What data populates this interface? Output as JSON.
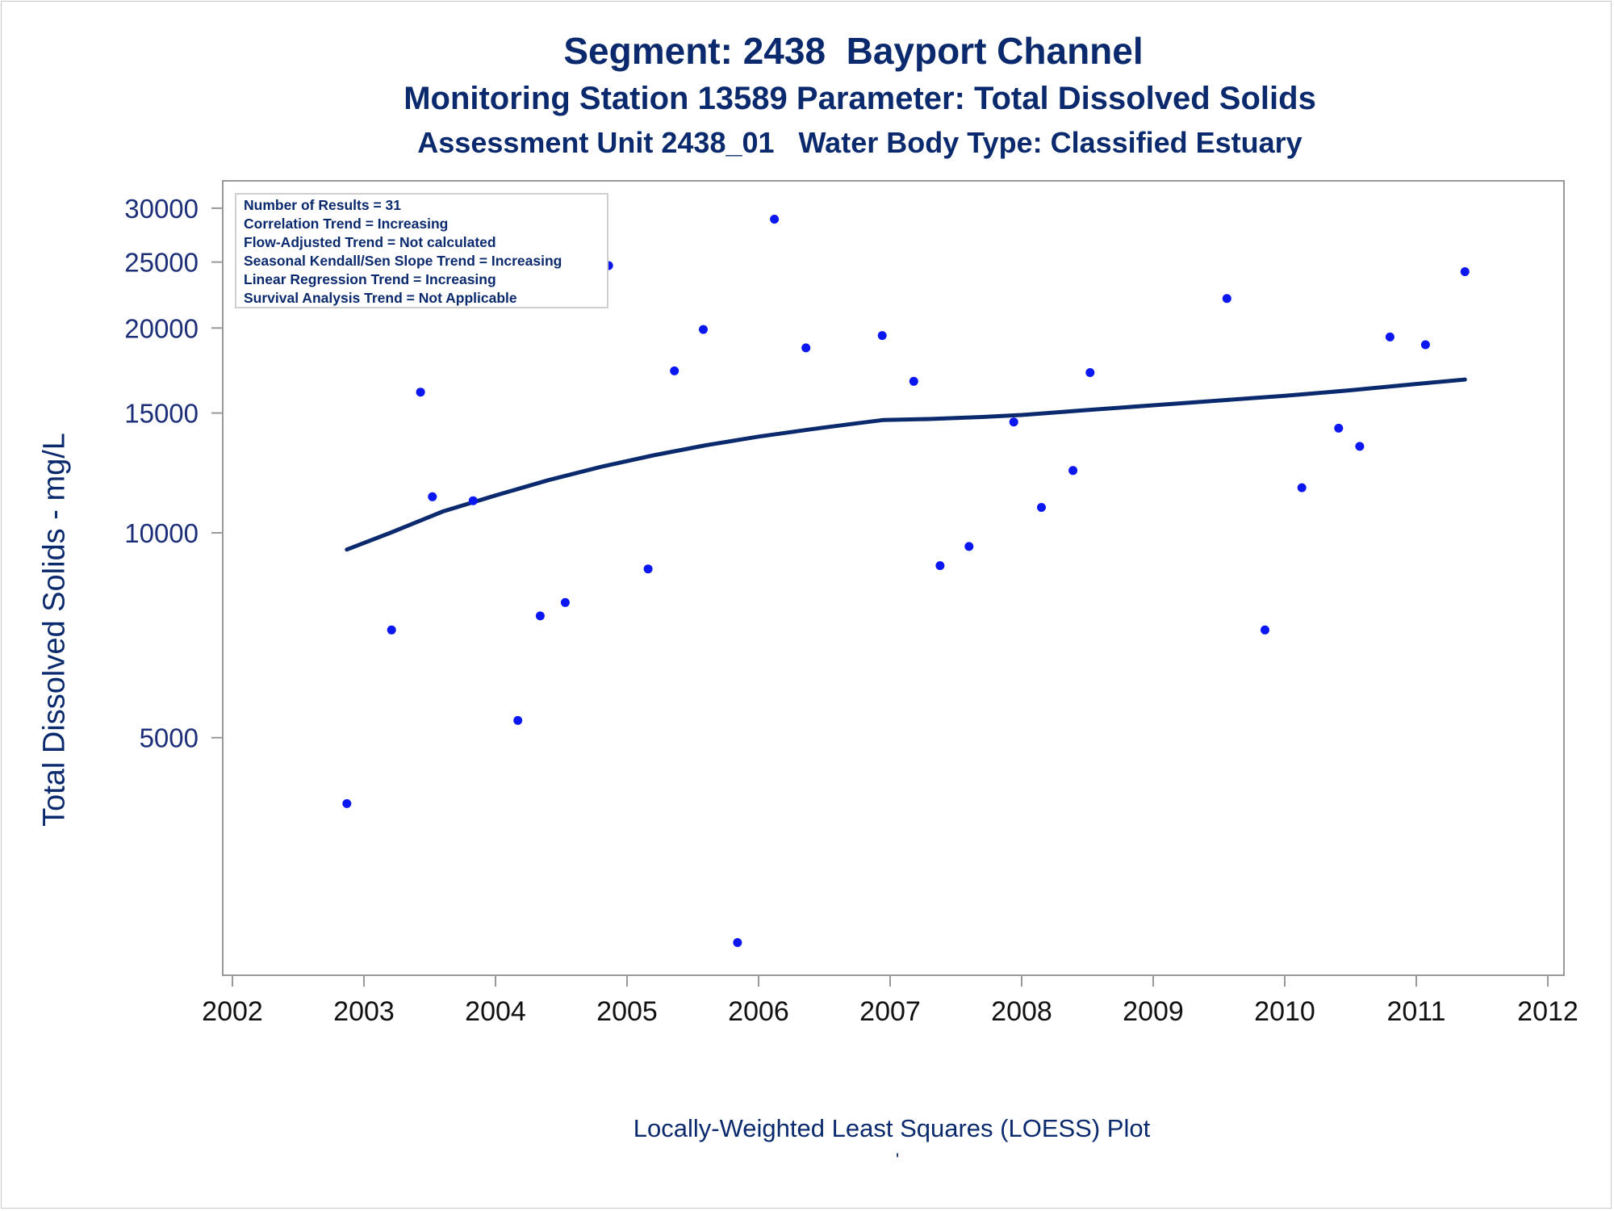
{
  "header": {
    "title": "Segment: 2438  Bayport Channel",
    "subtitle": "Monitoring Station 13589 Parameter: Total Dissolved Solids",
    "subtitle2": "Assessment Unit 2438_01   Water Body Type: Classified Estuary"
  },
  "footnote": "Locally-Weighted Least Squares (LOESS) Plot",
  "footnote_mark": "'",
  "colors": {
    "text": "#0b2a6e",
    "points": "#0a17f0",
    "loess": "#0b2a6e",
    "axis": "#999999"
  },
  "chart_data": {
    "type": "scatter",
    "ylabel": "Total Dissolved Solids - mg/L",
    "xlabel": "",
    "y_scale": "log",
    "xlim": [
      2002.0,
      2012.0
    ],
    "ylim": [
      2300,
      31500
    ],
    "x_ticks": [
      2002,
      2003,
      2004,
      2005,
      2006,
      2007,
      2008,
      2009,
      2010,
      2011,
      2012
    ],
    "y_ticks": [
      5000,
      10000,
      15000,
      20000,
      25000,
      30000
    ],
    "legend_position": "top-left",
    "stats": [
      "Number of Results = 31",
      "Correlation Trend = Increasing",
      "Flow-Adjusted Trend = Not calculated",
      "Seasonal Kendall/Sen Slope Trend = Increasing",
      "Linear Regression Trend = Increasing",
      "Survival Analysis Trend = Not Applicable"
    ],
    "points": [
      {
        "x": 2002.87,
        "y": 4000
      },
      {
        "x": 2003.21,
        "y": 7200
      },
      {
        "x": 2003.43,
        "y": 16100
      },
      {
        "x": 2003.52,
        "y": 11300
      },
      {
        "x": 2003.83,
        "y": 11150
      },
      {
        "x": 2004.17,
        "y": 5300
      },
      {
        "x": 2004.34,
        "y": 7550
      },
      {
        "x": 2004.53,
        "y": 7900
      },
      {
        "x": 2004.86,
        "y": 24700
      },
      {
        "x": 2005.16,
        "y": 8850
      },
      {
        "x": 2005.36,
        "y": 17300
      },
      {
        "x": 2005.58,
        "y": 19900
      },
      {
        "x": 2005.84,
        "y": 2500
      },
      {
        "x": 2006.12,
        "y": 28900
      },
      {
        "x": 2006.36,
        "y": 18700
      },
      {
        "x": 2006.94,
        "y": 19500
      },
      {
        "x": 2007.18,
        "y": 16700
      },
      {
        "x": 2007.38,
        "y": 8950
      },
      {
        "x": 2007.6,
        "y": 9550
      },
      {
        "x": 2007.94,
        "y": 14550
      },
      {
        "x": 2008.15,
        "y": 10900
      },
      {
        "x": 2008.39,
        "y": 12350
      },
      {
        "x": 2008.52,
        "y": 17200
      },
      {
        "x": 2009.56,
        "y": 22100
      },
      {
        "x": 2009.85,
        "y": 7200
      },
      {
        "x": 2010.13,
        "y": 11650
      },
      {
        "x": 2010.41,
        "y": 14250
      },
      {
        "x": 2010.57,
        "y": 13400
      },
      {
        "x": 2010.8,
        "y": 19400
      },
      {
        "x": 2011.07,
        "y": 18900
      },
      {
        "x": 2011.37,
        "y": 24200
      }
    ],
    "loess": {
      "x": [
        2002.87,
        2003.2,
        2003.6,
        2004.0,
        2004.4,
        2004.8,
        2005.2,
        2005.6,
        2006.0,
        2006.4,
        2006.7,
        2006.95,
        2007.3,
        2007.7,
        2008.0,
        2008.5,
        2009.0,
        2009.5,
        2010.0,
        2010.5,
        2011.0,
        2011.37
      ],
      "y": [
        9450,
        10000,
        10750,
        11350,
        11950,
        12500,
        13000,
        13450,
        13850,
        14200,
        14450,
        14650,
        14700,
        14800,
        14900,
        15150,
        15400,
        15650,
        15900,
        16200,
        16550,
        16800
      ]
    }
  }
}
